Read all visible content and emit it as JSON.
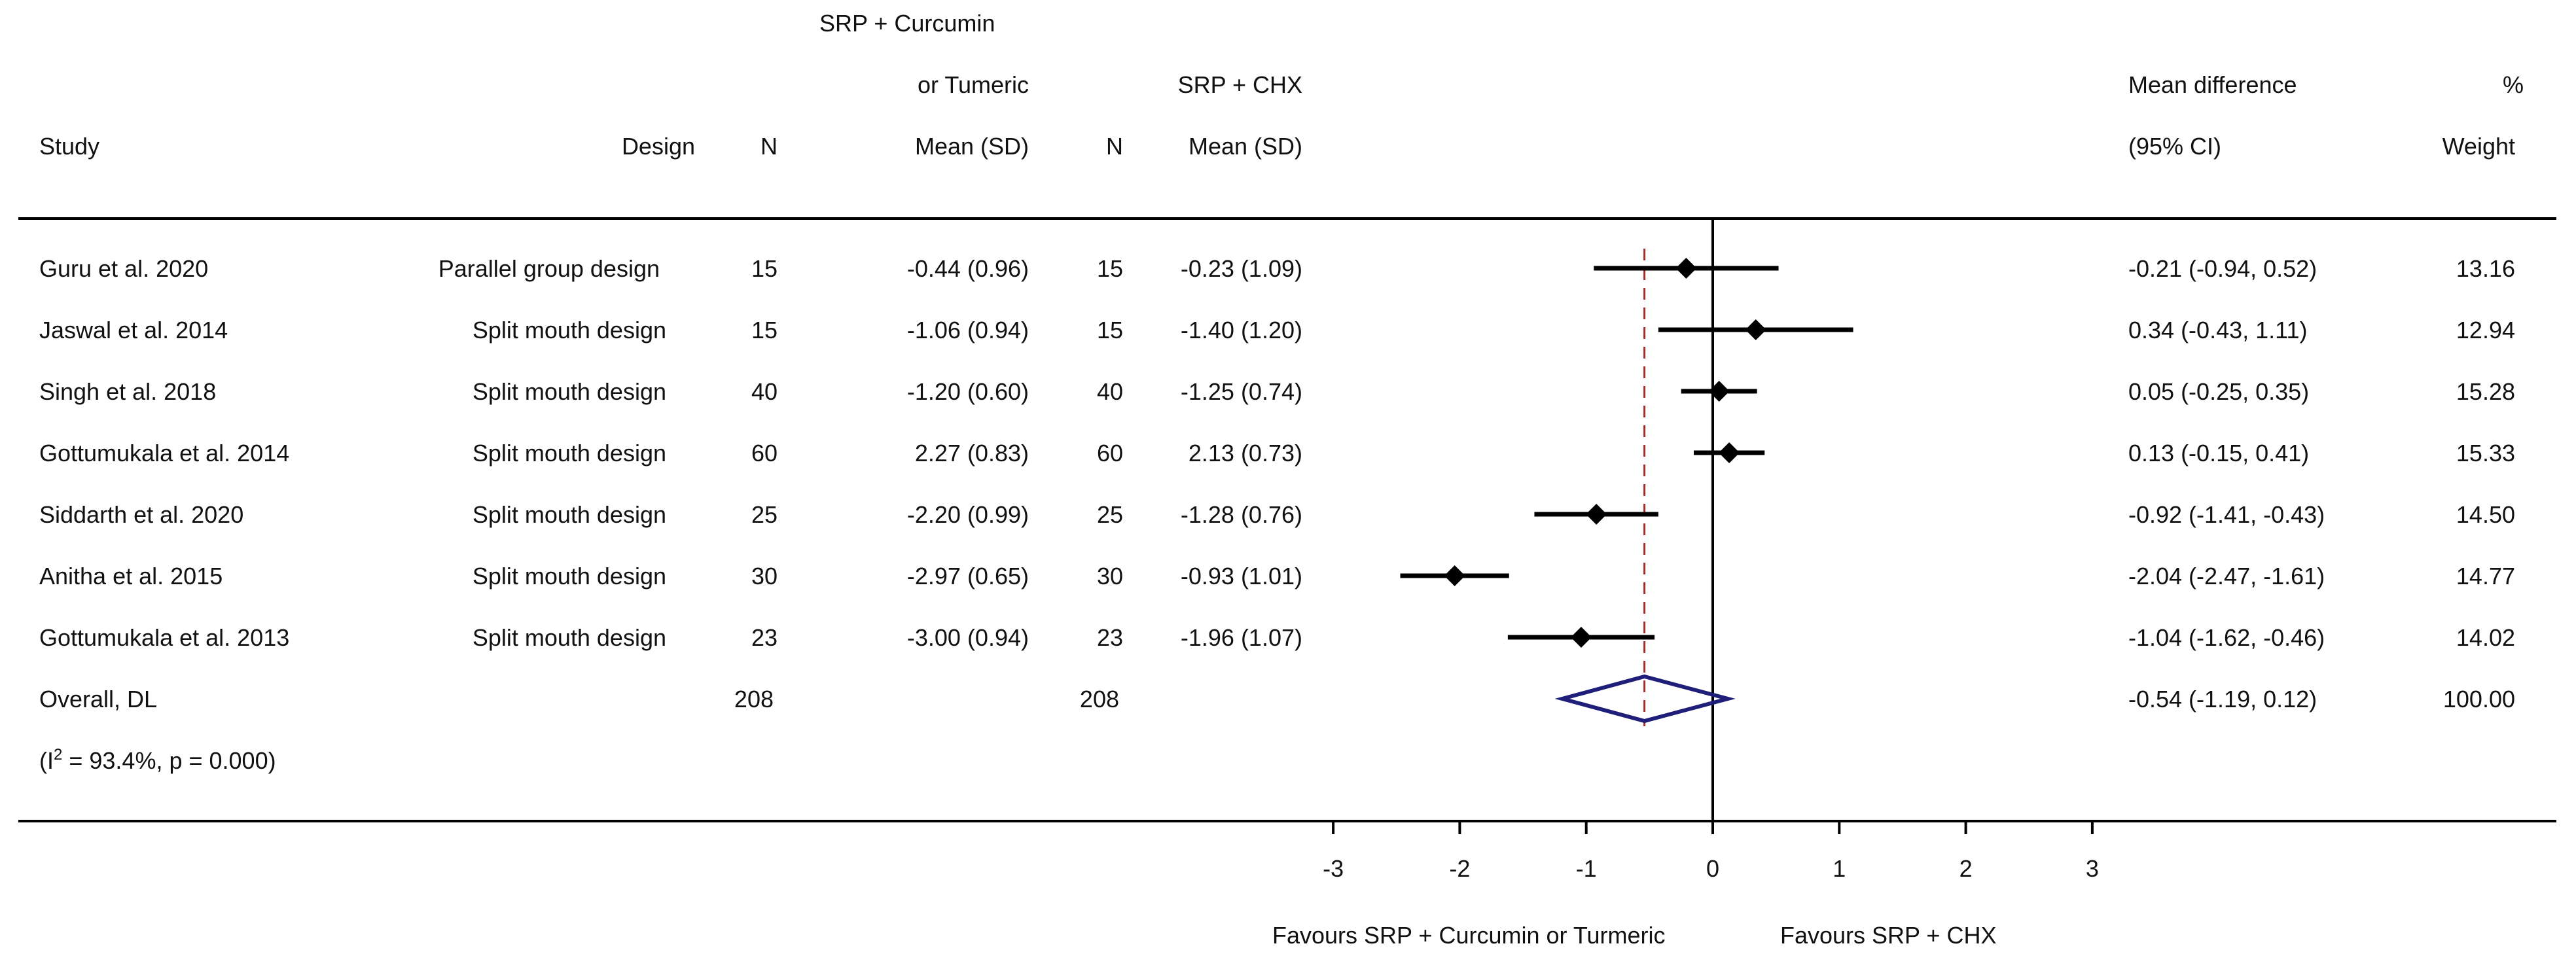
{
  "header": {
    "study": "Study",
    "design": "Design",
    "n1": "N",
    "group1_line1": "SRP + Curcumin",
    "group1_line2": "or Tumeric",
    "group1_line3": "Mean (SD)",
    "n2": "N",
    "group2_line1": "SRP + CHX",
    "group2_line2": "Mean (SD)",
    "md_line1": "Mean difference",
    "md_line2": "(95% CI)",
    "weight_line1": "%",
    "weight_line2": "Weight"
  },
  "rows": [
    {
      "study": "Guru et al. 2020",
      "design": "Parallel group design",
      "n1": "15",
      "m1": "-0.44 (0.96)",
      "n2": "15",
      "m2": "-0.23 (1.09)",
      "ci_text": "-0.21 (-0.94, 0.52)",
      "weight": "13.16"
    },
    {
      "study": "Jaswal et al. 2014",
      "design": "Split mouth design",
      "n1": "15",
      "m1": "-1.06 (0.94)",
      "n2": "15",
      "m2": "-1.40 (1.20)",
      "ci_text": "0.34 (-0.43, 1.11)",
      "weight": "12.94"
    },
    {
      "study": "Singh et al. 2018",
      "design": "Split mouth design",
      "n1": "40",
      "m1": "-1.20 (0.60)",
      "n2": "40",
      "m2": "-1.25 (0.74)",
      "ci_text": "0.05 (-0.25, 0.35)",
      "weight": "15.28"
    },
    {
      "study": "Gottumukala et al. 2014",
      "design": "Split mouth design",
      "n1": "60",
      "m1": "2.27 (0.83)",
      "n2": "60",
      "m2": "2.13 (0.73)",
      "ci_text": "0.13 (-0.15, 0.41)",
      "weight": "15.33"
    },
    {
      "study": "Siddarth et al. 2020",
      "design": "Split mouth design",
      "n1": "25",
      "m1": "-2.20 (0.99)",
      "n2": "25",
      "m2": "-1.28 (0.76)",
      "ci_text": "-0.92 (-1.41, -0.43)",
      "weight": "14.50"
    },
    {
      "study": "Anitha et al. 2015",
      "design": "Split mouth design",
      "n1": "30",
      "m1": "-2.97 (0.65)",
      "n2": "30",
      "m2": "-0.93 (1.01)",
      "ci_text": "-2.04 (-2.47, -1.61)",
      "weight": "14.77"
    },
    {
      "study": "Gottumukala et al. 2013",
      "design": "Split mouth design",
      "n1": "23",
      "m1": "-3.00 (0.94)",
      "n2": "23",
      "m2": "-1.96 (1.07)",
      "ci_text": "-1.04 (-1.62, -0.46)",
      "weight": "14.02"
    }
  ],
  "overall": {
    "label": "Overall, DL",
    "n1": "208",
    "n2": "208",
    "ci_text": "-0.54 (-1.19, 0.12)",
    "weight": "100.00",
    "het_prefix": "(I",
    "het_sup": "2",
    "het_rest": " = 93.4%, p = 0.000)"
  },
  "footer": {
    "favours_left": "Favours SRP + Curcumin or Turmeric",
    "favours_right": "Favours SRP +  CHX"
  },
  "colors": {
    "line": "#000000",
    "diamond": "#1f1f7a",
    "dash": "#a52a2a"
  },
  "chart_data": {
    "type": "forest",
    "xlabel": "",
    "xlim": [
      -3,
      3
    ],
    "xticks": [
      -3,
      -2,
      -1,
      0,
      1,
      2,
      3
    ],
    "null_line": 0,
    "studies": [
      {
        "study": "Guru et al. 2020",
        "md": -0.21,
        "lo": -0.94,
        "hi": 0.52,
        "weight": 13.16
      },
      {
        "study": "Jaswal et al. 2014",
        "md": 0.34,
        "lo": -0.43,
        "hi": 1.11,
        "weight": 12.94
      },
      {
        "study": "Singh et al. 2018",
        "md": 0.05,
        "lo": -0.25,
        "hi": 0.35,
        "weight": 15.28
      },
      {
        "study": "Gottumukala et al. 2014",
        "md": 0.13,
        "lo": -0.15,
        "hi": 0.41,
        "weight": 15.33
      },
      {
        "study": "Siddarth et al. 2020",
        "md": -0.92,
        "lo": -1.41,
        "hi": -0.43,
        "weight": 14.5
      },
      {
        "study": "Anitha et al. 2015",
        "md": -2.04,
        "lo": -2.47,
        "hi": -1.61,
        "weight": 14.77
      },
      {
        "study": "Gottumukala et al. 2013",
        "md": -1.04,
        "lo": -1.62,
        "hi": -0.46,
        "weight": 14.02
      }
    ],
    "overall": {
      "label": "Overall, DL",
      "md": -0.54,
      "lo": -1.19,
      "hi": 0.12,
      "weight": 100.0
    }
  }
}
